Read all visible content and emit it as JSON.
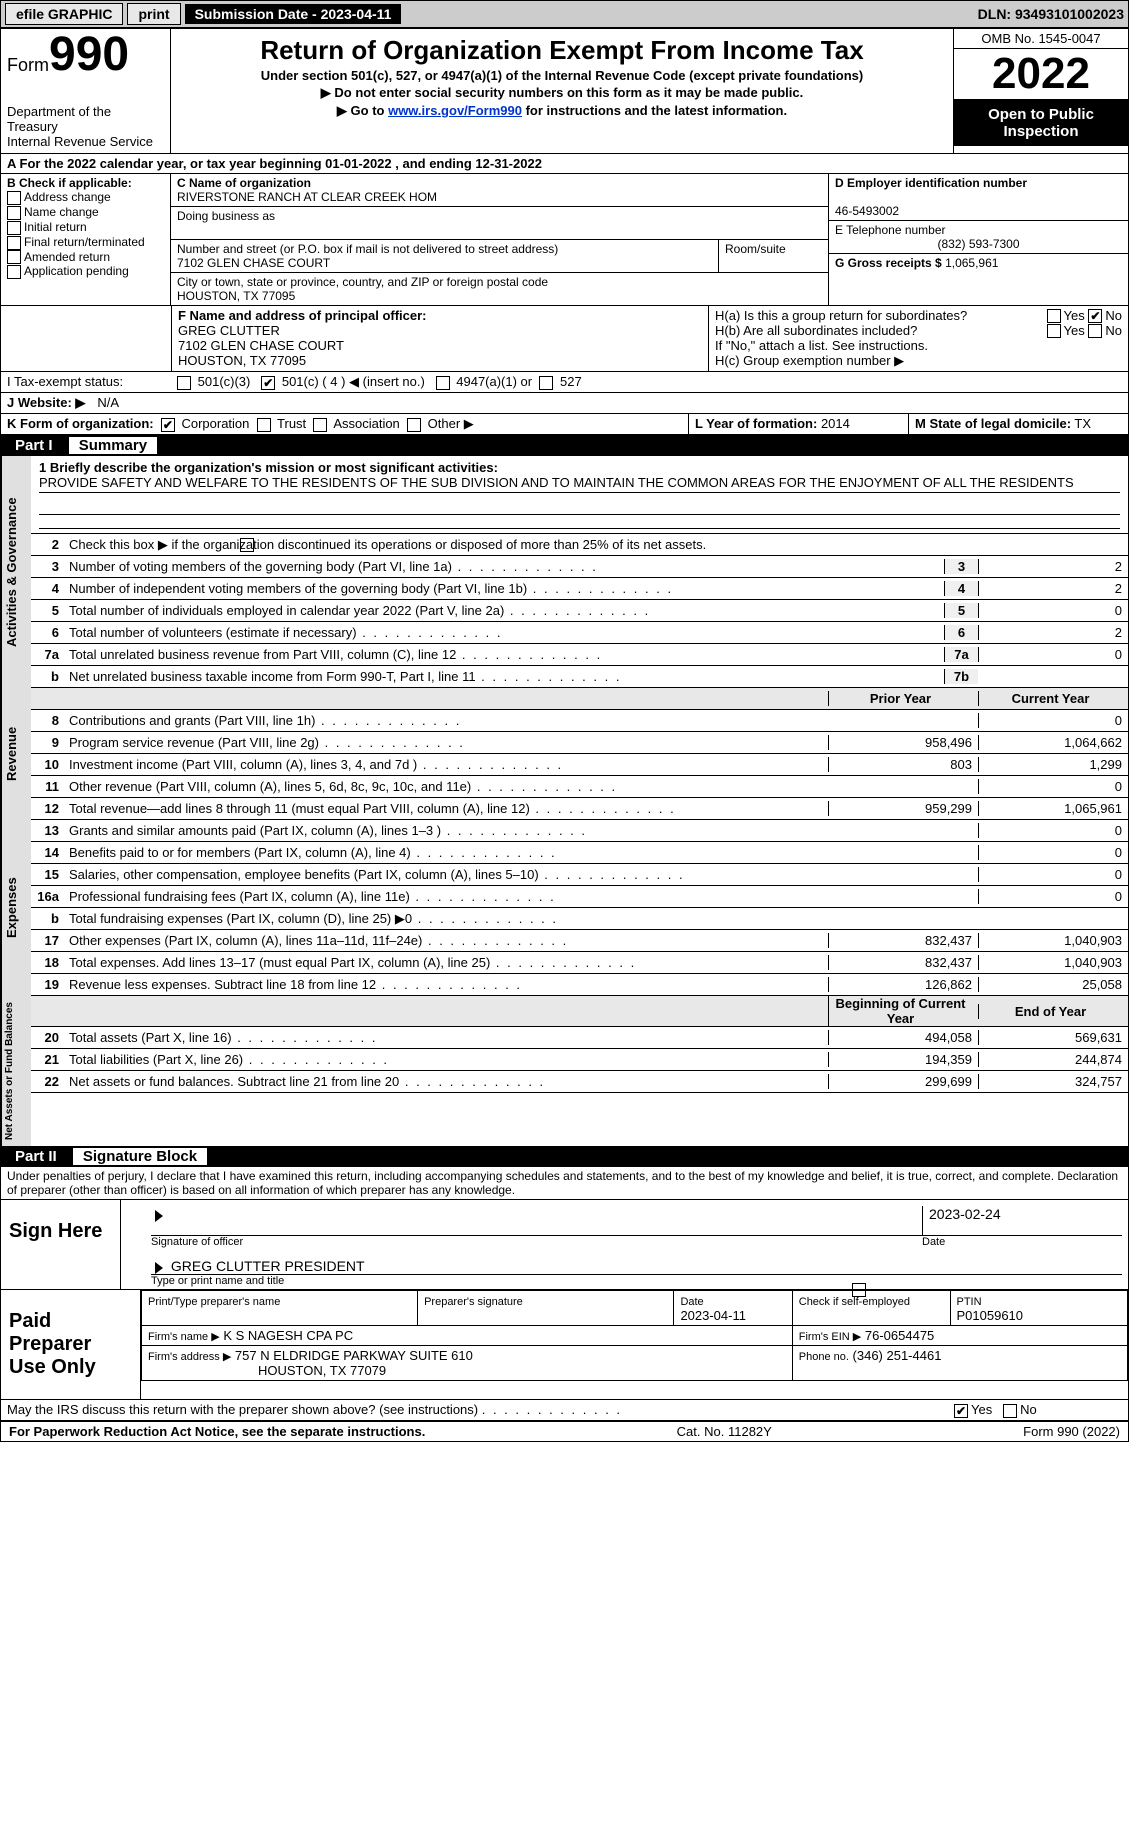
{
  "topbar": {
    "efile": "efile GRAPHIC",
    "print": "print",
    "submission": "Submission Date - 2023-04-11",
    "dln": "DLN: 93493101002023"
  },
  "header": {
    "form_label": "Form",
    "form_num": "990",
    "dept": "Department of the Treasury",
    "irs": "Internal Revenue Service",
    "title": "Return of Organization Exempt From Income Tax",
    "sub1": "Under section 501(c), 527, or 4947(a)(1) of the Internal Revenue Code (except private foundations)",
    "sub2": "▶ Do not enter social security numbers on this form as it may be made public.",
    "sub3_pre": "▶ Go to ",
    "sub3_link": "www.irs.gov/Form990",
    "sub3_post": " for instructions and the latest information.",
    "omb": "OMB No. 1545-0047",
    "year": "2022",
    "open": "Open to Public Inspection"
  },
  "lineA": {
    "pre": "A For the 2022 calendar year, or tax year beginning ",
    "begin": "01-01-2022",
    "mid": " , and ending ",
    "end": "12-31-2022"
  },
  "sectionB": {
    "label": "B Check if applicable:",
    "opts": [
      "Address change",
      "Name change",
      "Initial return",
      "Final return/terminated",
      "Amended return",
      "Application pending"
    ]
  },
  "sectionC": {
    "name_label": "C Name of organization",
    "name": "RIVERSTONE RANCH AT CLEAR CREEK HOM",
    "dba_label": "Doing business as",
    "addr_label": "Number and street (or P.O. box if mail is not delivered to street address)",
    "room_label": "Room/suite",
    "addr": "7102 GLEN CHASE COURT",
    "city_label": "City or town, state or province, country, and ZIP or foreign postal code",
    "city": "HOUSTON, TX  77095"
  },
  "sectionD": {
    "label": "D Employer identification number",
    "ein": "46-5493002"
  },
  "sectionE": {
    "label": "E Telephone number",
    "phone": "(832) 593-7300"
  },
  "sectionG": {
    "label": "G Gross receipts $",
    "val": "1,065,961"
  },
  "sectionF": {
    "label": "F Name and address of principal officer:",
    "name": "GREG CLUTTER",
    "addr1": "7102 GLEN CHASE COURT",
    "addr2": "HOUSTON, TX  77095"
  },
  "sectionH": {
    "a": "H(a)  Is this a group return for subordinates?",
    "b": "H(b)  Are all subordinates included?",
    "b_note": "If \"No,\" attach a list. See instructions.",
    "c": "H(c)  Group exemption number ▶",
    "yes": "Yes",
    "no": "No"
  },
  "sectionI": {
    "label": "I   Tax-exempt status:",
    "o1": "501(c)(3)",
    "o2": "501(c) ( 4 ) ◀ (insert no.)",
    "o3": "4947(a)(1) or",
    "o4": "527"
  },
  "sectionJ": {
    "label": "J   Website: ▶",
    "val": "N/A"
  },
  "sectionK": {
    "label": "K Form of organization:",
    "o1": "Corporation",
    "o2": "Trust",
    "o3": "Association",
    "o4": "Other ▶"
  },
  "sectionL": {
    "label": "L Year of formation:",
    "val": "2014"
  },
  "sectionM": {
    "label": "M State of legal domicile:",
    "val": "TX"
  },
  "part1": {
    "num": "Part I",
    "title": "Summary"
  },
  "summary": {
    "mission_label": "1   Briefly describe the organization's mission or most significant activities:",
    "mission": "PROVIDE SAFETY AND WELFARE TO THE RESIDENTS OF THE SUB DIVISION AND TO MAINTAIN THE COMMON AREAS FOR THE ENJOYMENT OF ALL THE RESIDENTS",
    "line2": "Check this box ▶           if the organization discontinued its operations or disposed of more than 25% of its net assets.",
    "rows_ag": [
      {
        "n": "3",
        "d": "Number of voting members of the governing body (Part VI, line 1a)",
        "b": "3",
        "v": "2"
      },
      {
        "n": "4",
        "d": "Number of independent voting members of the governing body (Part VI, line 1b)",
        "b": "4",
        "v": "2"
      },
      {
        "n": "5",
        "d": "Total number of individuals employed in calendar year 2022 (Part V, line 2a)",
        "b": "5",
        "v": "0"
      },
      {
        "n": "6",
        "d": "Total number of volunteers (estimate if necessary)",
        "b": "6",
        "v": "2"
      },
      {
        "n": "7a",
        "d": "Total unrelated business revenue from Part VIII, column (C), line 12",
        "b": "7a",
        "v": "0"
      },
      {
        "n": "b",
        "d": "Net unrelated business taxable income from Form 990-T, Part I, line 11",
        "b": "7b",
        "v": ""
      }
    ],
    "col_prior": "Prior Year",
    "col_current": "Current Year",
    "rows_rev": [
      {
        "n": "8",
        "d": "Contributions and grants (Part VIII, line 1h)",
        "p": "",
        "c": "0"
      },
      {
        "n": "9",
        "d": "Program service revenue (Part VIII, line 2g)",
        "p": "958,496",
        "c": "1,064,662"
      },
      {
        "n": "10",
        "d": "Investment income (Part VIII, column (A), lines 3, 4, and 7d )",
        "p": "803",
        "c": "1,299"
      },
      {
        "n": "11",
        "d": "Other revenue (Part VIII, column (A), lines 5, 6d, 8c, 9c, 10c, and 11e)",
        "p": "",
        "c": "0"
      },
      {
        "n": "12",
        "d": "Total revenue—add lines 8 through 11 (must equal Part VIII, column (A), line 12)",
        "p": "959,299",
        "c": "1,065,961"
      }
    ],
    "rows_exp": [
      {
        "n": "13",
        "d": "Grants and similar amounts paid (Part IX, column (A), lines 1–3 )",
        "p": "",
        "c": "0"
      },
      {
        "n": "14",
        "d": "Benefits paid to or for members (Part IX, column (A), line 4)",
        "p": "",
        "c": "0"
      },
      {
        "n": "15",
        "d": "Salaries, other compensation, employee benefits (Part IX, column (A), lines 5–10)",
        "p": "",
        "c": "0"
      },
      {
        "n": "16a",
        "d": "Professional fundraising fees (Part IX, column (A), line 11e)",
        "p": "",
        "c": "0"
      },
      {
        "n": "b",
        "d": "Total fundraising expenses (Part IX, column (D), line 25) ▶0",
        "p": "shade",
        "c": "shade"
      },
      {
        "n": "17",
        "d": "Other expenses (Part IX, column (A), lines 11a–11d, 11f–24e)",
        "p": "832,437",
        "c": "1,040,903"
      },
      {
        "n": "18",
        "d": "Total expenses. Add lines 13–17 (must equal Part IX, column (A), line 25)",
        "p": "832,437",
        "c": "1,040,903"
      },
      {
        "n": "19",
        "d": "Revenue less expenses. Subtract line 18 from line 12",
        "p": "126,862",
        "c": "25,058"
      }
    ],
    "col_begin": "Beginning of Current Year",
    "col_end": "End of Year",
    "rows_na": [
      {
        "n": "20",
        "d": "Total assets (Part X, line 16)",
        "p": "494,058",
        "c": "569,631"
      },
      {
        "n": "21",
        "d": "Total liabilities (Part X, line 26)",
        "p": "194,359",
        "c": "244,874"
      },
      {
        "n": "22",
        "d": "Net assets or fund balances. Subtract line 21 from line 20",
        "p": "299,699",
        "c": "324,757"
      }
    ],
    "vlabels": {
      "ag": "Activities & Governance",
      "rev": "Revenue",
      "exp": "Expenses",
      "na": "Net Assets or Fund Balances"
    }
  },
  "part2": {
    "num": "Part II",
    "title": "Signature Block",
    "decl": "Under penalties of perjury, I declare that I have examined this return, including accompanying schedules and statements, and to the best of my knowledge and belief, it is true, correct, and complete. Declaration of preparer (other than officer) is based on all information of which preparer has any knowledge."
  },
  "sign": {
    "here": "Sign Here",
    "sig_label": "Signature of officer",
    "date_label": "Date",
    "date": "2023-02-24",
    "name_label": "Type or print name and title",
    "name": "GREG CLUTTER  PRESIDENT"
  },
  "preparer": {
    "label": "Paid Preparer Use Only",
    "print_label": "Print/Type preparer's name",
    "sig_label": "Preparer's signature",
    "date_label": "Date",
    "date": "2023-04-11",
    "check_label": "Check           if self-employed",
    "ptin_label": "PTIN",
    "ptin": "P01059610",
    "firm_name_label": "Firm's name     ▶",
    "firm_name": "K S NAGESH CPA PC",
    "firm_ein_label": "Firm's EIN ▶",
    "firm_ein": "76-0654475",
    "firm_addr_label": "Firm's address ▶",
    "firm_addr1": "757 N ELDRIDGE PARKWAY SUITE 610",
    "firm_addr2": "HOUSTON, TX  77079",
    "phone_label": "Phone no.",
    "phone": "(346) 251-4461"
  },
  "discuss": {
    "text": "May the IRS discuss this return with the preparer shown above? (see instructions)",
    "yes": "Yes",
    "no": "No"
  },
  "footer": {
    "left": "For Paperwork Reduction Act Notice, see the separate instructions.",
    "mid": "Cat. No. 11282Y",
    "right": "Form 990 (2022)"
  }
}
